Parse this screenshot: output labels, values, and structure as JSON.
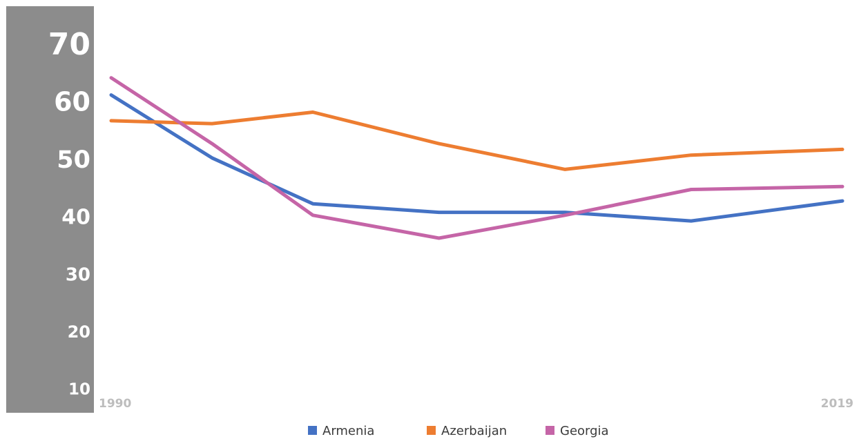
{
  "chart_data": {
    "type": "line",
    "x": [
      1990,
      1994,
      1998,
      2003,
      2008,
      2013,
      2019
    ],
    "x_tick_labels": [
      "1990",
      "2019"
    ],
    "y_ticks": [
      10,
      20,
      30,
      40,
      50,
      60,
      70
    ],
    "y_tick_labels": [
      "10",
      "20",
      "30",
      "40",
      "50",
      "60",
      "70"
    ],
    "ylim": [
      6,
      77
    ],
    "grid": false,
    "legend_position": "bottom",
    "series": [
      {
        "name": "Armenia",
        "color": "#4472c4",
        "values": [
          61.5,
          50.5,
          42.5,
          41,
          41,
          39.5,
          43
        ]
      },
      {
        "name": "Azerbaijan",
        "color": "#ed7d31",
        "values": [
          57,
          56.5,
          58.5,
          53,
          48.5,
          51,
          52
        ]
      },
      {
        "name": "Georgia",
        "color": "#c565a7",
        "values": [
          64.5,
          53,
          40.5,
          36.5,
          40.5,
          45,
          45.5
        ]
      }
    ]
  }
}
